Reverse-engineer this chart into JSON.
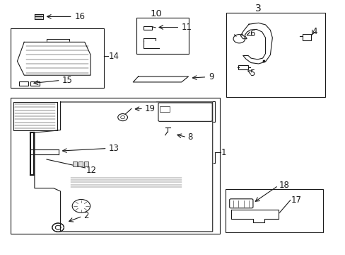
{
  "bg_color": "#ffffff",
  "line_color": "#1a1a1a",
  "title": "",
  "fig_width": 4.89,
  "fig_height": 3.6,
  "dpi": 100
}
